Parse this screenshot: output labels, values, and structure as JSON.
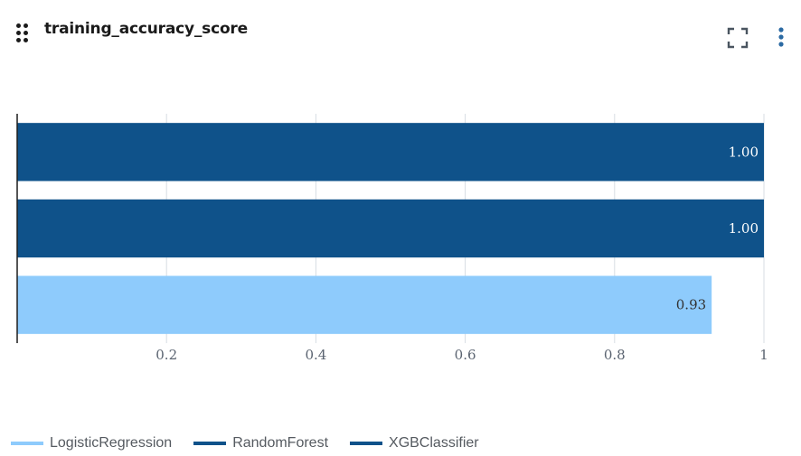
{
  "header": {
    "title": "training_accuracy_score"
  },
  "colors": {
    "dark_blue": "#0f528a",
    "light_blue": "#8ecbfc",
    "grid": "#d7dde3",
    "axis": "#1c1c1c",
    "tick_text": "#5a6370"
  },
  "icons": {
    "drag": "drag-handle-icon",
    "expand": "expand-icon",
    "more": "more-vertical-icon"
  },
  "chart_data": {
    "type": "bar",
    "orientation": "horizontal",
    "title": "",
    "xlabel": "",
    "ylabel": "",
    "xlim": [
      0,
      1
    ],
    "x_ticks": [
      {
        "value": 0.2,
        "label": "0.2"
      },
      {
        "value": 0.4,
        "label": "0.4"
      },
      {
        "value": 0.6,
        "label": "0.6"
      },
      {
        "value": 0.8,
        "label": "0.8"
      },
      {
        "value": 1,
        "label": "1"
      }
    ],
    "grid": true,
    "legend_position": "bottom-left",
    "series": [
      {
        "name": "XGBClassifier",
        "value": 1.0,
        "label": "1.00",
        "color": "#0f528a",
        "text_color": "#ffffff"
      },
      {
        "name": "RandomForest",
        "value": 1.0,
        "label": "1.00",
        "color": "#0f528a",
        "text_color": "#ffffff"
      },
      {
        "name": "LogisticRegression",
        "value": 0.93,
        "label": "0.93",
        "color": "#8ecbfc",
        "text_color": "#333333"
      }
    ],
    "legend": [
      {
        "name": "LogisticRegression",
        "color": "#8ecbfc"
      },
      {
        "name": "RandomForest",
        "color": "#0f528a"
      },
      {
        "name": "XGBClassifier",
        "color": "#0f528a"
      }
    ]
  }
}
